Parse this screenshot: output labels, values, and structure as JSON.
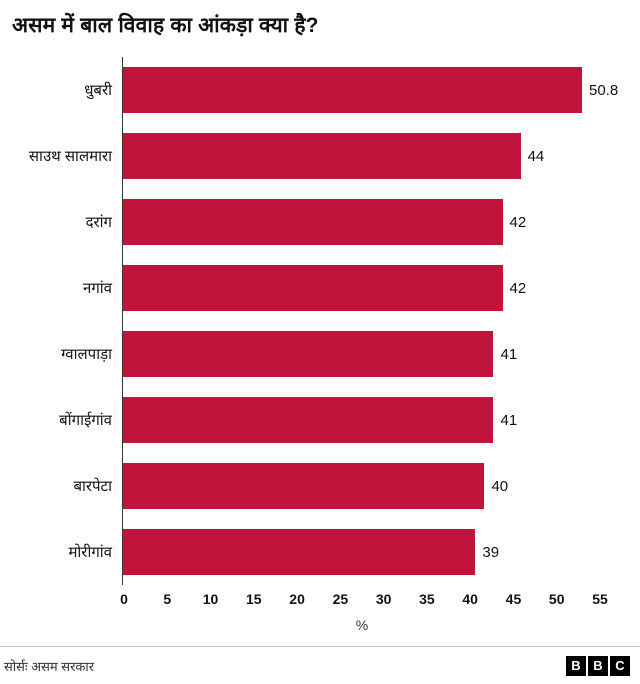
{
  "title": "असम में बाल विवाह का आंकड़ा क्या है?",
  "chart_data": {
    "type": "bar",
    "orientation": "horizontal",
    "title": "असम में बाल विवाह का आंकड़ा क्या है?",
    "categories": [
      "धुबरी",
      "साउथ सालमारा",
      "दरांग",
      "नगांव",
      "ग्वालपाड़ा",
      "बोंगाईगांव",
      "बारपेटा",
      "मोरीगांव"
    ],
    "values": [
      50.8,
      44,
      42,
      42,
      41,
      41,
      40,
      39
    ],
    "value_labels": [
      "50.8",
      "44",
      "42",
      "42",
      "41",
      "41",
      "40",
      "39"
    ],
    "xlabel": "%",
    "xlim": [
      0,
      55
    ],
    "xticks": [
      0,
      5,
      10,
      15,
      20,
      25,
      30,
      35,
      40,
      45,
      50,
      55
    ],
    "bar_color": "#c0143c",
    "grid": false,
    "legend": "none"
  },
  "footer": {
    "source": "सोर्सः असम सरकार",
    "logo_letters": [
      "B",
      "B",
      "C"
    ]
  }
}
